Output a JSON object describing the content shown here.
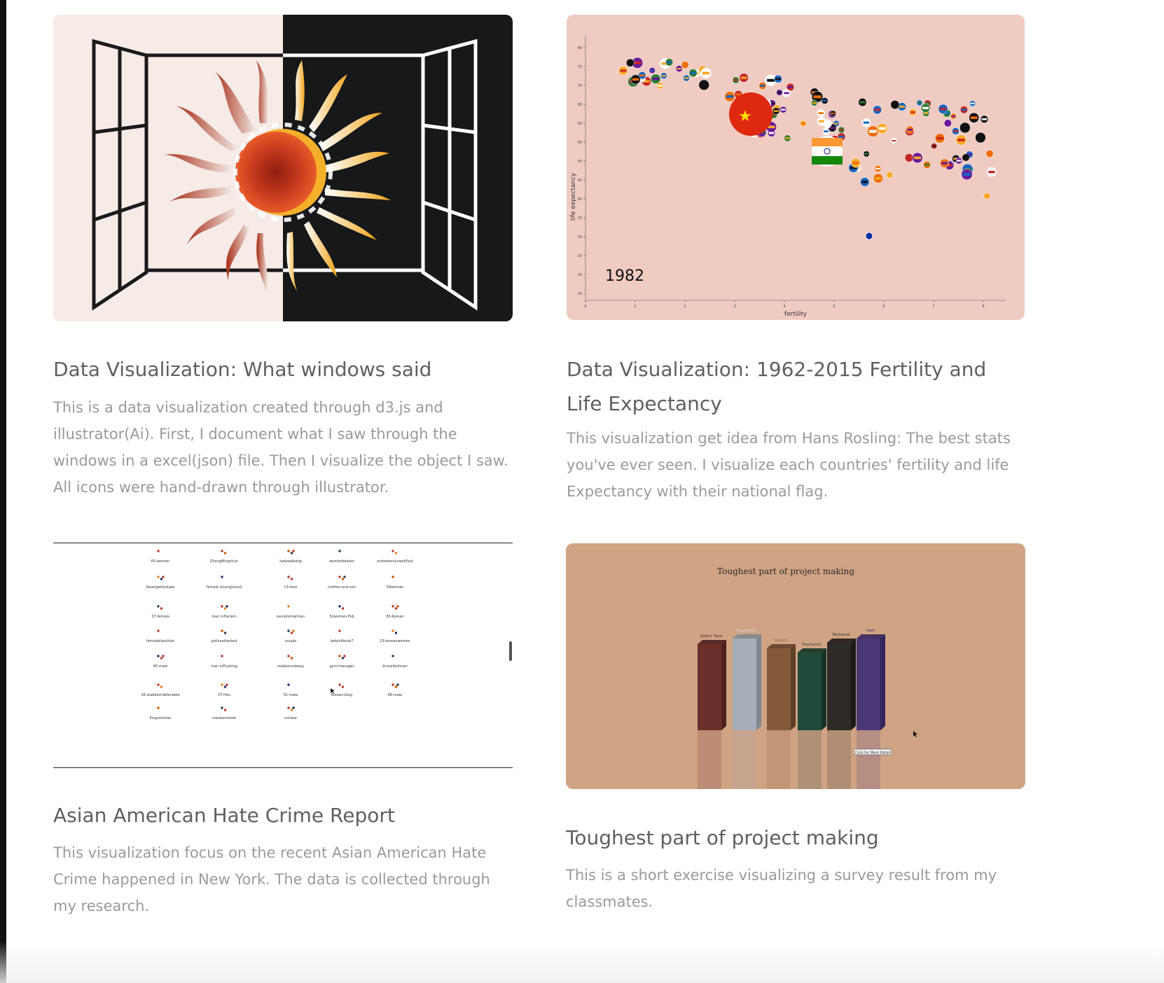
{
  "projects": [
    {
      "title": "Data Visualization: What windows said",
      "description": "This is a data visualization created through d3.js and illustrator(Ai). First, I document what I saw through the windows in a excel(json) file. Then I visualize the object I saw. All icons were hand-drawn through illustrator."
    },
    {
      "title": "Data Visualization: 1962-2015 Fertility and Life Expectancy",
      "description": "This visualization get idea from Hans Rosling: The best stats you've ever seen. I visualize each countries' fertility and life Expectancy with their national flag."
    },
    {
      "title": "Asian American Hate Crime Report",
      "description": "This visualization focus on the recent Asian American Hate Crime happened in New York. The data is collected through my research."
    },
    {
      "title": "Toughest part of project making",
      "description": "This is a short exercise visualizing a survey result from my classmates."
    }
  ],
  "fertility_chart": {
    "year_label": "1982",
    "xlabel": "fertility",
    "ylabel": "life expectancy",
    "x_ticks": [
      "0",
      "1",
      "2",
      "3",
      "4",
      "5",
      "6",
      "7",
      "8"
    ],
    "y_ticks": [
      "15",
      "20",
      "25",
      "30",
      "35",
      "40",
      "45",
      "50",
      "55",
      "60",
      "65",
      "70",
      "75",
      "80"
    ]
  },
  "hate_crime_grid": {
    "labels": [
      "65-women",
      "ZhangMingshun",
      "ladywalkdog",
      "womenbeaten",
      "protestersLowerEast",
      "Asiangetlockjaw",
      "female inLongIsland",
      "13-teen",
      "mother-and-son",
      "54woman",
      "37-female",
      "man inHarlem",
      "laundromatman",
      "52women-Feb",
      "83-Korean",
      "femaleblackhair",
      "policeattacked",
      "couple",
      "ladyinRoute7",
      "23-koreanwomen",
      "65-male",
      "man inFlushing",
      "maskonsubway",
      "gym-manager",
      "brucelleshnari",
      "36-stabbed-defenable",
      "37-Hou",
      "61-male",
      "Korean-blog",
      "68-male",
      "Programmer",
      "maskonstreet",
      "unclear"
    ]
  },
  "survey_chart": {
    "title": "Toughest part of project making",
    "categories": [
      "Select Topic",
      "Inspiration",
      "Design",
      "Teamwork",
      "Technical",
      "User"
    ],
    "tooltip": "Click for More Detail"
  }
}
